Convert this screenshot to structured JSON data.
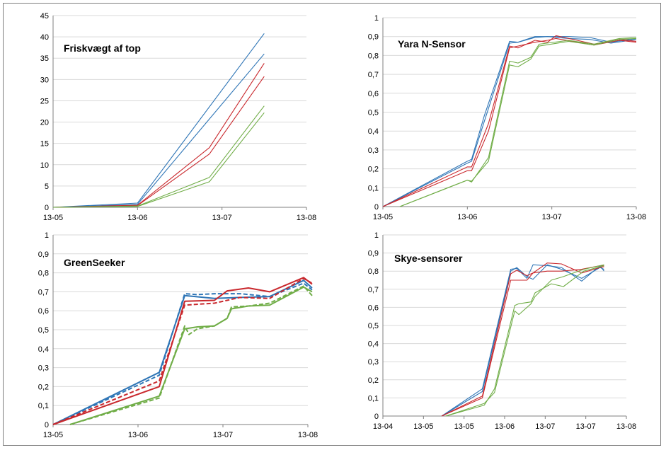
{
  "colors": {
    "blue": "#2e75b6",
    "red": "#c9282d",
    "green": "#70ad47",
    "grid": "#d9d9d9",
    "axis": "#7f7f7f"
  },
  "chart_data": [
    {
      "type": "line",
      "title": "Friskvægt af top",
      "x_ticks": [
        "13-05",
        "13-06",
        "13-07",
        "13-08"
      ],
      "x_range": [
        0,
        3
      ],
      "ylim": [
        0,
        45
      ],
      "y_ticks": [
        "0",
        "5",
        "10",
        "15",
        "20",
        "25",
        "30",
        "35",
        "40",
        "45"
      ],
      "y_step": 5,
      "grid": "horizontal",
      "series": [
        {
          "color": "blue",
          "dash": false,
          "x": [
            0,
            1,
            2.5
          ],
          "y": [
            0,
            1,
            40.8
          ]
        },
        {
          "color": "blue",
          "dash": false,
          "x": [
            0,
            1,
            2.5
          ],
          "y": [
            0,
            0.7,
            36
          ]
        },
        {
          "color": "red",
          "dash": false,
          "x": [
            0,
            1,
            1.85,
            2.5
          ],
          "y": [
            0,
            0.5,
            14,
            33.8
          ]
        },
        {
          "color": "red",
          "dash": false,
          "x": [
            0,
            1,
            1.85,
            2.5
          ],
          "y": [
            0,
            0.4,
            12.5,
            30.7
          ]
        },
        {
          "color": "green",
          "dash": false,
          "x": [
            0,
            1,
            1.85,
            2.5
          ],
          "y": [
            0,
            0.3,
            7,
            23.8
          ]
        },
        {
          "color": "green",
          "dash": false,
          "x": [
            0,
            1,
            1.85,
            2.5
          ],
          "y": [
            0,
            0.2,
            6,
            22.2
          ]
        }
      ]
    },
    {
      "type": "line",
      "title": "Yara N-Sensor",
      "x_ticks": [
        "13-05",
        "13-06",
        "13-07",
        "13-08"
      ],
      "x_range": [
        0,
        3
      ],
      "ylim": [
        0,
        1
      ],
      "y_ticks": [
        "0",
        "0,1",
        "0,2",
        "0,3",
        "0,4",
        "0,5",
        "0,6",
        "0,7",
        "0,8",
        "0,9",
        "1"
      ],
      "y_step": 0.1,
      "grid": "horizontal",
      "series": [
        {
          "color": "blue",
          "dash": false,
          "x": [
            0,
            1,
            1.05,
            1.2,
            1.5,
            1.6,
            1.8,
            1.95,
            2.2,
            2.45,
            2.7,
            3
          ],
          "y": [
            0,
            0.24,
            0.25,
            0.48,
            0.875,
            0.87,
            0.9,
            0.9,
            0.9,
            0.895,
            0.87,
            0.89
          ]
        },
        {
          "color": "blue",
          "dash": false,
          "x": [
            0,
            1,
            1.05,
            1.2,
            1.5,
            1.6,
            1.8,
            1.95,
            2.2,
            2.45,
            2.7,
            3
          ],
          "y": [
            0,
            0.23,
            0.24,
            0.45,
            0.865,
            0.87,
            0.895,
            0.9,
            0.89,
            0.885,
            0.865,
            0.885
          ]
        },
        {
          "color": "red",
          "dash": false,
          "x": [
            0,
            1,
            1.05,
            1.25,
            1.5,
            1.6,
            1.8,
            1.95,
            2.05,
            2.3,
            2.5,
            2.8,
            3
          ],
          "y": [
            0,
            0.21,
            0.21,
            0.44,
            0.85,
            0.84,
            0.88,
            0.87,
            0.905,
            0.88,
            0.86,
            0.885,
            0.875
          ]
        },
        {
          "color": "red",
          "dash": false,
          "x": [
            0,
            1,
            1.05,
            1.25,
            1.5,
            1.6,
            1.8,
            1.95,
            2.05,
            2.3,
            2.5,
            2.8,
            3
          ],
          "y": [
            0,
            0.19,
            0.19,
            0.4,
            0.84,
            0.85,
            0.87,
            0.88,
            0.89,
            0.87,
            0.855,
            0.88,
            0.87
          ]
        },
        {
          "color": "green",
          "dash": false,
          "x": [
            0.2,
            1,
            1.05,
            1.25,
            1.5,
            1.6,
            1.75,
            1.85,
            2.2,
            2.5,
            2.8,
            3
          ],
          "y": [
            0,
            0.14,
            0.13,
            0.26,
            0.77,
            0.76,
            0.79,
            0.86,
            0.88,
            0.86,
            0.89,
            0.895
          ]
        },
        {
          "color": "green",
          "dash": false,
          "x": [
            0.2,
            1,
            1.05,
            1.25,
            1.5,
            1.6,
            1.75,
            1.85,
            2.2,
            2.5,
            2.8,
            3
          ],
          "y": [
            0,
            0.14,
            0.135,
            0.24,
            0.75,
            0.74,
            0.78,
            0.85,
            0.875,
            0.855,
            0.885,
            0.89
          ]
        }
      ]
    },
    {
      "type": "line",
      "title": "GreenSeeker",
      "x_ticks": [
        "13-05",
        "13-06",
        "13-07",
        "13-08"
      ],
      "x_range": [
        0,
        3
      ],
      "ylim": [
        0,
        1
      ],
      "y_ticks": [
        "0",
        "0,1",
        "0,2",
        "0,3",
        "0,4",
        "0,5",
        "0,6",
        "0,7",
        "0,8",
        "0,9",
        "1"
      ],
      "y_step": 0.1,
      "grid": "horizontal",
      "series": [
        {
          "color": "blue",
          "dash": false,
          "x": [
            0,
            1.25,
            1.55,
            1.9,
            2.2,
            2.55,
            2.95,
            3.05
          ],
          "y": [
            0,
            0.275,
            0.68,
            0.665,
            0.67,
            0.675,
            0.76,
            0.72
          ]
        },
        {
          "color": "blue",
          "dash": true,
          "x": [
            0,
            1.25,
            1.55,
            1.7,
            1.9,
            2.2,
            2.55,
            2.95,
            3.05
          ],
          "y": [
            0,
            0.26,
            0.69,
            0.685,
            0.69,
            0.69,
            0.675,
            0.745,
            0.71
          ]
        },
        {
          "color": "red",
          "dash": false,
          "x": [
            0,
            1.25,
            1.55,
            1.9,
            2.05,
            2.3,
            2.55,
            2.95,
            3.05
          ],
          "y": [
            0,
            0.2,
            0.65,
            0.655,
            0.705,
            0.72,
            0.7,
            0.775,
            0.74
          ]
        },
        {
          "color": "red",
          "dash": true,
          "x": [
            0,
            1.25,
            1.55,
            1.9,
            2.2,
            2.55,
            2.95,
            3.05
          ],
          "y": [
            0,
            0.23,
            0.63,
            0.64,
            0.67,
            0.665,
            0.77,
            0.745
          ]
        },
        {
          "color": "green",
          "dash": false,
          "x": [
            0.2,
            1.25,
            1.55,
            1.7,
            1.9,
            2.05,
            2.1,
            2.3,
            2.55,
            2.95,
            3.05
          ],
          "y": [
            0,
            0.15,
            0.505,
            0.515,
            0.52,
            0.56,
            0.61,
            0.625,
            0.63,
            0.725,
            0.7
          ]
        },
        {
          "color": "green",
          "dash": true,
          "x": [
            0.2,
            1.25,
            1.55,
            1.6,
            1.7,
            1.9,
            2.05,
            2.1,
            2.3,
            2.55,
            2.95,
            3.05
          ],
          "y": [
            0,
            0.14,
            0.52,
            0.475,
            0.505,
            0.52,
            0.56,
            0.62,
            0.625,
            0.64,
            0.73,
            0.68
          ]
        }
      ]
    },
    {
      "type": "line",
      "title": "Skye-sensorer",
      "x_ticks": [
        "13-04",
        "13-05",
        "13-05",
        "13-06",
        "13-07",
        "13-07",
        "13-08"
      ],
      "x_range": [
        0,
        6
      ],
      "ylim": [
        0,
        1
      ],
      "y_ticks": [
        "0",
        "0,1",
        "0,2",
        "0,3",
        "0,4",
        "0,5",
        "0,6",
        "0,7",
        "0,8",
        "0,9",
        "1"
      ],
      "y_step": 0.1,
      "grid": "horizontal",
      "series": [
        {
          "color": "blue",
          "dash": false,
          "x": [
            1.45,
            2.45,
            3.15,
            3.3,
            3.55,
            3.7,
            4.05,
            4.4,
            4.9,
            5.35,
            5.45
          ],
          "y": [
            0,
            0.15,
            0.81,
            0.815,
            0.76,
            0.835,
            0.83,
            0.82,
            0.745,
            0.83,
            0.8
          ]
        },
        {
          "color": "blue",
          "dash": false,
          "x": [
            1.45,
            2.45,
            3.15,
            3.3,
            3.55,
            3.7,
            4.05,
            4.4,
            4.9,
            5.35,
            5.45
          ],
          "y": [
            0,
            0.135,
            0.8,
            0.82,
            0.77,
            0.755,
            0.835,
            0.81,
            0.76,
            0.82,
            0.81
          ]
        },
        {
          "color": "red",
          "dash": false,
          "x": [
            1.45,
            2.45,
            3.15,
            3.3,
            3.55,
            3.7,
            4.05,
            4.4,
            4.9,
            5.35,
            5.45
          ],
          "y": [
            0,
            0.11,
            0.785,
            0.805,
            0.775,
            0.79,
            0.845,
            0.84,
            0.79,
            0.82,
            0.825
          ]
        },
        {
          "color": "red",
          "dash": false,
          "x": [
            1.45,
            2.45,
            3.15,
            3.3,
            3.55,
            3.7,
            4.05,
            4.4,
            4.9,
            5.35,
            5.45
          ],
          "y": [
            0,
            0.1,
            0.75,
            0.75,
            0.75,
            0.79,
            0.8,
            0.8,
            0.81,
            0.83,
            0.83
          ]
        },
        {
          "color": "green",
          "dash": false,
          "x": [
            1.55,
            2.5,
            2.75,
            3.25,
            3.35,
            3.65,
            3.75,
            4.15,
            4.45,
            4.95,
            5.45
          ],
          "y": [
            0,
            0.06,
            0.15,
            0.61,
            0.62,
            0.63,
            0.68,
            0.73,
            0.715,
            0.8,
            0.83
          ]
        },
        {
          "color": "green",
          "dash": false,
          "x": [
            1.55,
            2.5,
            2.75,
            3.25,
            3.35,
            3.65,
            3.75,
            4.15,
            4.45,
            4.95,
            5.45
          ],
          "y": [
            0,
            0.07,
            0.13,
            0.58,
            0.56,
            0.62,
            0.66,
            0.75,
            0.77,
            0.81,
            0.835
          ]
        }
      ]
    }
  ]
}
